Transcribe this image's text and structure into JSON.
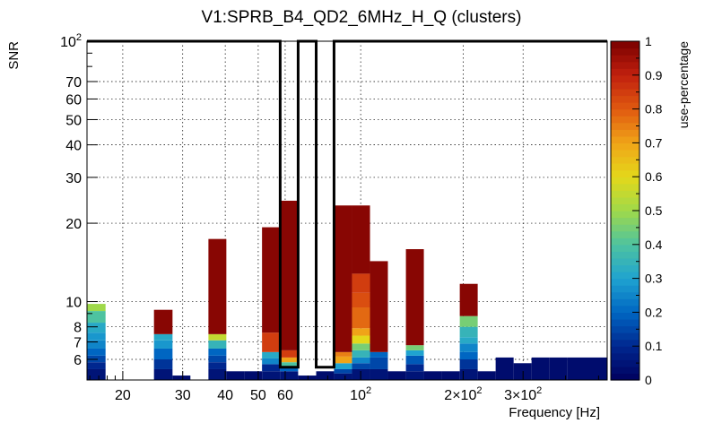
{
  "chart_data": {
    "type": "heatmap",
    "title": "V1:SPRB_B4_QD2_6MHz_H_Q (clusters)",
    "xlabel": "Frequency [Hz]",
    "ylabel": "SNR",
    "zlabel": "use-percentage",
    "x_scale": "log",
    "y_scale": "log",
    "xlim": [
      15.7,
      530
    ],
    "ylim": [
      5,
      100
    ],
    "zlim": [
      0,
      1
    ],
    "x_ticks": [
      {
        "value": 20,
        "label": "20"
      },
      {
        "value": 30,
        "label": "30"
      },
      {
        "value": 40,
        "label": "40"
      },
      {
        "value": 50,
        "label": "50"
      },
      {
        "value": 60,
        "label": "60"
      },
      {
        "value": 100,
        "label": "10",
        "sup": "2"
      },
      {
        "value": 200,
        "label": "2×10",
        "sup": "2"
      },
      {
        "value": 300,
        "label": "3×10",
        "sup": "2"
      }
    ],
    "y_ticks": [
      {
        "value": 6,
        "label": "6"
      },
      {
        "value": 7,
        "label": "7"
      },
      {
        "value": 8,
        "label": "8"
      },
      {
        "value": 10,
        "label": "10"
      },
      {
        "value": 20,
        "label": "20"
      },
      {
        "value": 30,
        "label": "30"
      },
      {
        "value": 40,
        "label": "40"
      },
      {
        "value": 50,
        "label": "50"
      },
      {
        "value": 60,
        "label": "60"
      },
      {
        "value": 70,
        "label": "70"
      },
      {
        "value": 100,
        "label": "10",
        "sup": "2"
      }
    ],
    "z_ticks": [
      "0",
      "0.1",
      "0.2",
      "0.3",
      "0.4",
      "0.5",
      "0.6",
      "0.7",
      "0.8",
      "0.9",
      "1"
    ],
    "columns": [
      {
        "f0": 15.7,
        "f1": 17.8,
        "max_snr": 9.8,
        "segments": [
          [
            5,
            5.5,
            0.05
          ],
          [
            5.5,
            5.85,
            0.1
          ],
          [
            5.85,
            6.2,
            0.15
          ],
          [
            6.2,
            6.6,
            0.2
          ],
          [
            6.6,
            7.1,
            0.25
          ],
          [
            7.1,
            7.6,
            0.28
          ],
          [
            7.6,
            8.3,
            0.32
          ],
          [
            8.3,
            9.2,
            0.4
          ],
          [
            9.2,
            9.8,
            0.5
          ]
        ]
      },
      {
        "f0": 24.7,
        "f1": 28.0,
        "max_snr": 9.3,
        "segments": [
          [
            5,
            5.5,
            0.05
          ],
          [
            5.5,
            6.0,
            0.12
          ],
          [
            6.0,
            6.6,
            0.2
          ],
          [
            6.6,
            7.1,
            0.28
          ],
          [
            7.1,
            7.5,
            0.32
          ],
          [
            7.5,
            9.3,
            0.98
          ]
        ]
      },
      {
        "f0": 28.0,
        "f1": 31.6,
        "max_snr": 5.2,
        "segments": [
          [
            5,
            5.2,
            0.03
          ]
        ]
      },
      {
        "f0": 35.7,
        "f1": 40.3,
        "max_snr": 17.4,
        "segments": [
          [
            5,
            5.5,
            0.05
          ],
          [
            5.5,
            5.85,
            0.1
          ],
          [
            5.85,
            6.2,
            0.15
          ],
          [
            6.2,
            6.6,
            0.2
          ],
          [
            6.6,
            7.1,
            0.35
          ],
          [
            7.1,
            7.5,
            0.55
          ],
          [
            7.5,
            17.4,
            0.98
          ]
        ]
      },
      {
        "f0": 40.3,
        "f1": 45.5,
        "max_snr": 5.4,
        "segments": [
          [
            5,
            5.4,
            0.03
          ]
        ]
      },
      {
        "f0": 45.5,
        "f1": 51.3,
        "max_snr": 5.4,
        "segments": [
          [
            5,
            5.4,
            0.03
          ]
        ]
      },
      {
        "f0": 51.3,
        "f1": 58.0,
        "max_snr": 19.3,
        "segments": [
          [
            5,
            5.4,
            0.05
          ],
          [
            5.4,
            5.75,
            0.1
          ],
          [
            5.75,
            6.05,
            0.25
          ],
          [
            6.05,
            6.4,
            0.32
          ],
          [
            6.4,
            7.6,
            0.85
          ],
          [
            7.6,
            19.3,
            0.98
          ]
        ]
      },
      {
        "f0": 58.0,
        "f1": 65.5,
        "max_snr": 24.4,
        "segments": [
          [
            5,
            5.4,
            0.05
          ],
          [
            5.4,
            5.6,
            0.2
          ],
          [
            5.6,
            5.85,
            0.4
          ],
          [
            5.85,
            6.1,
            0.7
          ],
          [
            6.1,
            6.5,
            0.85
          ],
          [
            6.5,
            24.4,
            0.98
          ]
        ]
      },
      {
        "f0": 65.5,
        "f1": 74.0,
        "max_snr": 5.2,
        "segments": [
          [
            5,
            5.2,
            0.03
          ]
        ]
      },
      {
        "f0": 74.0,
        "f1": 83.5,
        "max_snr": 5.4,
        "segments": [
          [
            5,
            5.4,
            0.03
          ]
        ]
      },
      {
        "f0": 83.5,
        "f1": 94.3,
        "max_snr": 23.4,
        "segments": [
          [
            5,
            5.3,
            0.05
          ],
          [
            5.3,
            5.5,
            0.15
          ],
          [
            5.5,
            5.8,
            0.3
          ],
          [
            5.8,
            6.15,
            0.7
          ],
          [
            6.15,
            6.4,
            0.75
          ],
          [
            6.4,
            23.4,
            0.98
          ]
        ]
      },
      {
        "f0": 94.3,
        "f1": 106.5,
        "max_snr": 23.4,
        "segments": [
          [
            5,
            5.5,
            0.05
          ],
          [
            5.5,
            5.8,
            0.15
          ],
          [
            5.8,
            6.1,
            0.25
          ],
          [
            6.1,
            6.5,
            0.35
          ],
          [
            6.5,
            6.9,
            0.45
          ],
          [
            6.9,
            7.4,
            0.6
          ],
          [
            7.4,
            7.9,
            0.7
          ],
          [
            7.9,
            9.5,
            0.78
          ],
          [
            9.5,
            10.8,
            0.82
          ],
          [
            10.8,
            12.8,
            0.85
          ],
          [
            12.8,
            23.4,
            0.98
          ]
        ]
      },
      {
        "f0": 106.5,
        "f1": 120.2,
        "max_snr": 14.3,
        "segments": [
          [
            5,
            5.5,
            0.05
          ],
          [
            5.5,
            6.1,
            0.15
          ],
          [
            6.1,
            6.4,
            0.2
          ],
          [
            6.4,
            14.3,
            0.98
          ]
        ]
      },
      {
        "f0": 120.2,
        "f1": 135.8,
        "max_snr": 5.4,
        "segments": [
          [
            5,
            5.4,
            0.03
          ]
        ]
      },
      {
        "f0": 135.8,
        "f1": 153.3,
        "max_snr": 15.9,
        "segments": [
          [
            5,
            5.4,
            0.05
          ],
          [
            5.4,
            5.75,
            0.1
          ],
          [
            5.75,
            6.2,
            0.18
          ],
          [
            6.2,
            6.5,
            0.3
          ],
          [
            6.5,
            6.8,
            0.45
          ],
          [
            6.8,
            15.9,
            0.98
          ]
        ]
      },
      {
        "f0": 153.3,
        "f1": 173.1,
        "max_snr": 5.4,
        "segments": [
          [
            5,
            5.4,
            0.03
          ]
        ]
      },
      {
        "f0": 173.1,
        "f1": 195.5,
        "max_snr": 5.4,
        "segments": [
          [
            5,
            5.4,
            0.03
          ]
        ]
      },
      {
        "f0": 195.5,
        "f1": 220.7,
        "max_snr": 11.7,
        "segments": [
          [
            5,
            5.5,
            0.05
          ],
          [
            5.5,
            6.0,
            0.12
          ],
          [
            6.0,
            6.4,
            0.2
          ],
          [
            6.4,
            6.9,
            0.25
          ],
          [
            6.9,
            7.3,
            0.32
          ],
          [
            7.3,
            8.0,
            0.35
          ],
          [
            8.0,
            8.8,
            0.45
          ],
          [
            8.8,
            11.7,
            0.98
          ]
        ]
      },
      {
        "f0": 220.7,
        "f1": 249.2,
        "max_snr": 5.4,
        "segments": [
          [
            5,
            5.4,
            0.03
          ]
        ]
      },
      {
        "f0": 249.2,
        "f1": 281.4,
        "max_snr": 6.1,
        "segments": [
          [
            5,
            6.1,
            0.03
          ]
        ]
      },
      {
        "f0": 281.4,
        "f1": 317.7,
        "max_snr": 5.8,
        "segments": [
          [
            5,
            5.8,
            0.03
          ]
        ]
      },
      {
        "f0": 317.7,
        "f1": 358.7,
        "max_snr": 6.1,
        "segments": [
          [
            5,
            6.1,
            0.03
          ]
        ]
      },
      {
        "f0": 358.7,
        "f1": 405.0,
        "max_snr": 6.1,
        "segments": [
          [
            5,
            6.1,
            0.03
          ]
        ]
      },
      {
        "f0": 405.0,
        "f1": 530.0,
        "max_snr": 6.1,
        "segments": [
          [
            5,
            6.1,
            0.03
          ]
        ]
      }
    ],
    "outline": {
      "top_snr": 100,
      "notch_bottom_snr": 5.6,
      "notches": [
        [
          58.0,
          65.5
        ],
        [
          74.0,
          83.5
        ]
      ],
      "range": [
        15.7,
        530
      ]
    },
    "colorscale": [
      "#00005e",
      "#00278f",
      "#0066c2",
      "#1fa3d0",
      "#4ec3a0",
      "#9fd94a",
      "#e4d81a",
      "#f0a418",
      "#e05a10",
      "#c1200e",
      "#7a0000"
    ]
  }
}
